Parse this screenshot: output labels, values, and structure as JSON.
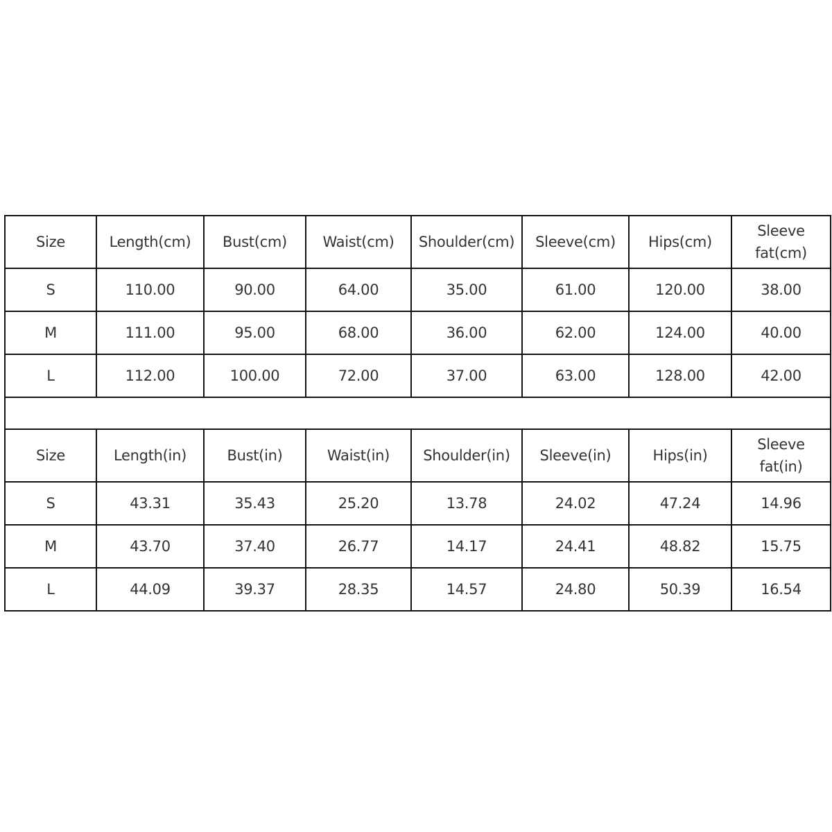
{
  "tables": [
    {
      "headers": [
        "Size",
        "Length(cm)",
        "Bust(cm)",
        "Waist(cm)",
        "Shoulder(cm)",
        "Sleeve(cm)",
        "Hips(cm)",
        "Sleeve fat(cm)"
      ],
      "rows": [
        [
          "S",
          "110.00",
          "90.00",
          "64.00",
          "35.00",
          "61.00",
          "120.00",
          "38.00"
        ],
        [
          "M",
          "111.00",
          "95.00",
          "68.00",
          "36.00",
          "62.00",
          "124.00",
          "40.00"
        ],
        [
          "L",
          "112.00",
          "100.00",
          "72.00",
          "37.00",
          "63.00",
          "128.00",
          "42.00"
        ]
      ]
    },
    {
      "headers": [
        "Size",
        "Length(in)",
        "Bust(in)",
        "Waist(in)",
        "Shoulder(in)",
        "Sleeve(in)",
        "Hips(in)",
        "Sleeve fat(in)"
      ],
      "rows": [
        [
          "S",
          "43.31",
          "35.43",
          "25.20",
          "13.78",
          "24.02",
          "47.24",
          "14.96"
        ],
        [
          "M",
          "43.70",
          "37.40",
          "26.77",
          "14.17",
          "24.41",
          "48.82",
          "15.75"
        ],
        [
          "L",
          "44.09",
          "39.37",
          "28.35",
          "14.57",
          "24.80",
          "50.39",
          "16.54"
        ]
      ]
    }
  ]
}
